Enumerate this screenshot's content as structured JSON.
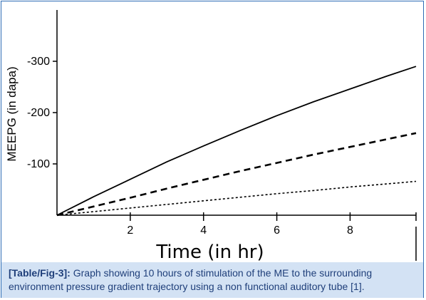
{
  "chart_data": {
    "type": "line",
    "xlabel": "Time (in hr)",
    "ylabel": "MEEPG (in dapa)",
    "xlim": [
      0,
      9.8
    ],
    "ylim": [
      0,
      -400
    ],
    "x_ticks": [
      2,
      4,
      6,
      8
    ],
    "x_tick_labels": [
      "2",
      "4",
      "6",
      "8"
    ],
    "y_ticks": [
      -100,
      -200,
      -300
    ],
    "y_tick_labels": [
      "-100",
      "-200",
      "-300"
    ],
    "grid": false,
    "series": [
      {
        "style": "solid",
        "color": "#000000",
        "x": [
          0,
          1,
          2,
          3,
          4,
          5,
          6,
          7,
          8,
          9,
          9.8
        ],
        "y": [
          0,
          -36,
          -70,
          -104,
          -135,
          -165,
          -194,
          -221,
          -246,
          -271,
          -290
        ]
      },
      {
        "style": "dashed",
        "color": "#000000",
        "x": [
          0,
          1,
          2,
          3,
          4,
          5,
          6,
          7,
          8,
          9,
          9.8
        ],
        "y": [
          0,
          -17,
          -34,
          -52,
          -69,
          -86,
          -102,
          -118,
          -133,
          -148,
          -160
        ]
      },
      {
        "style": "dotted",
        "color": "#000000",
        "x": [
          0,
          1,
          2,
          3,
          4,
          5,
          6,
          7,
          8,
          9,
          9.8
        ],
        "y": [
          0,
          -7,
          -14,
          -21,
          -28,
          -35,
          -42,
          -48,
          -55,
          -61,
          -66
        ]
      }
    ]
  },
  "caption": {
    "label": "[Table/Fig-3]:",
    "text": " Graph showing 10 hours of stimulation of the ME to the surrounding environment pressure gradient trajectory using a non functional auditory tube [1]."
  }
}
